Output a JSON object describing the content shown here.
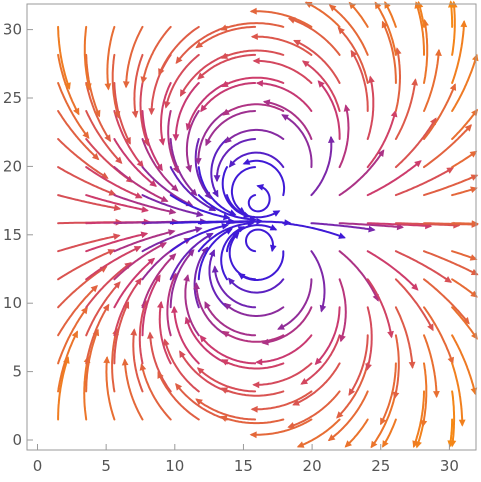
{
  "chart_data": {
    "type": "streamplot",
    "field": "dipole (current-dipole / vortex pair) flow centred at (16, 16)",
    "xlim": [
      -0.5,
      32
    ],
    "ylim": [
      -0.5,
      32
    ],
    "x_ticks": [
      "0",
      "5",
      "10",
      "15",
      "20",
      "25",
      "30"
    ],
    "y_ticks": [
      "0",
      "5",
      "10",
      "15",
      "20",
      "25",
      "30"
    ],
    "xlabel": "",
    "ylabel": "",
    "grid": false,
    "legend": "none",
    "center": [
      16,
      16
    ],
    "dipole_separation": 1.2,
    "color_scale": {
      "low_magnitude": "#ff9a00",
      "mid_magnitude": "#cc3a6e",
      "high_magnitude": "#3f1ad6",
      "encodes": "vector magnitude (purple = strong near centre, orange = weak at corners)"
    }
  }
}
